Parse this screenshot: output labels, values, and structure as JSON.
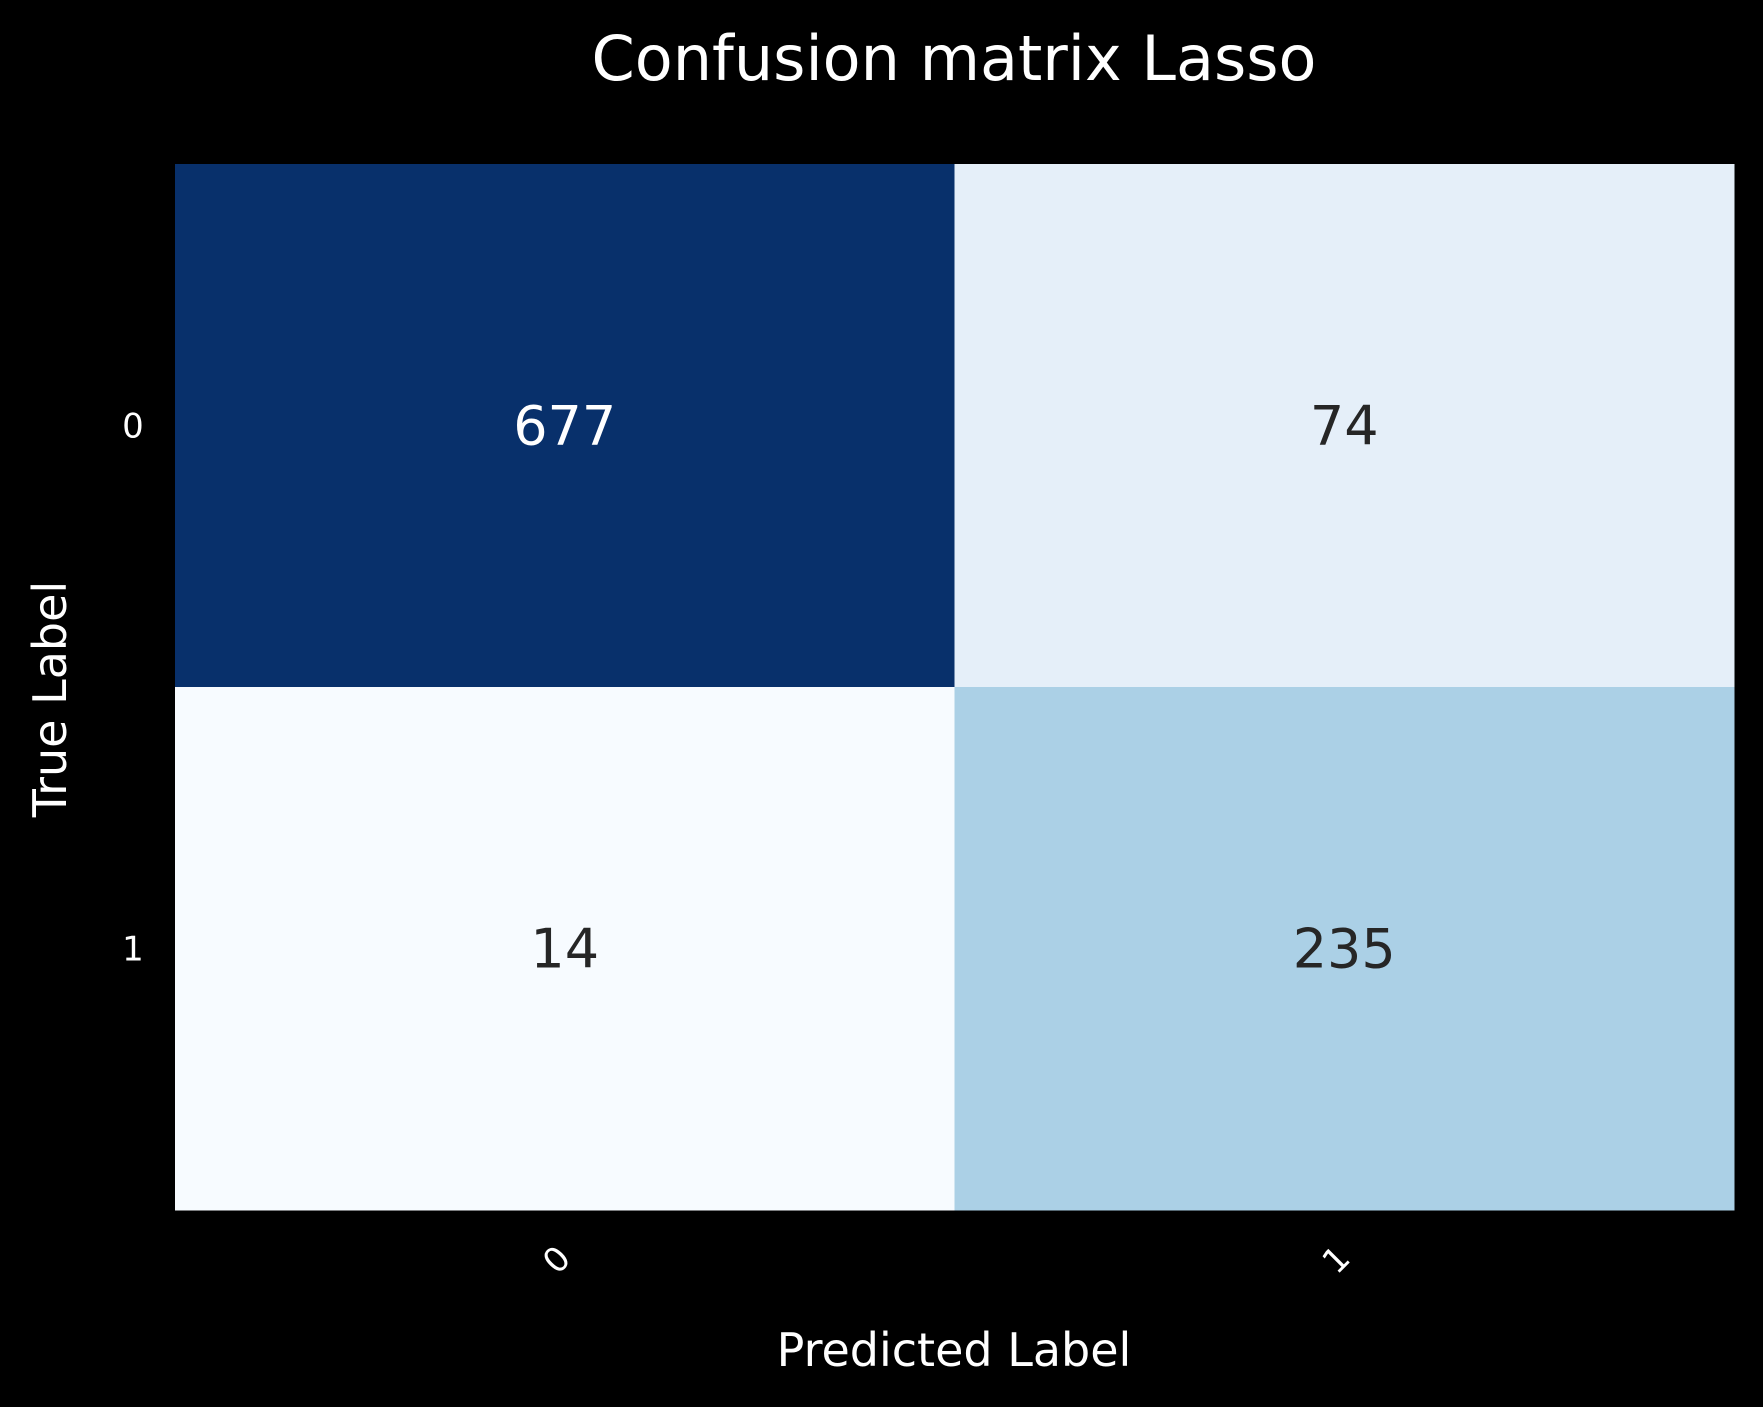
{
  "chart_data": {
    "type": "heatmap",
    "title": "Confusion matrix Lasso",
    "xlabel": "Predicted Label",
    "ylabel": "True Label",
    "x_ticks": [
      "0",
      "1"
    ],
    "y_ticks": [
      "0",
      "1"
    ],
    "values": [
      [
        677,
        74
      ],
      [
        14,
        235
      ]
    ],
    "colormap": "Blues",
    "colorbar": false,
    "grid": false
  },
  "colors": {
    "background": "#000000",
    "text": "#ffffff",
    "dark_annotation": "#262626",
    "scale": [
      "#f7fbff",
      "#deebf7",
      "#c6dbef",
      "#9ecae1",
      "#6baed6",
      "#4292c6",
      "#2171b5",
      "#08519c",
      "#08306b"
    ]
  }
}
